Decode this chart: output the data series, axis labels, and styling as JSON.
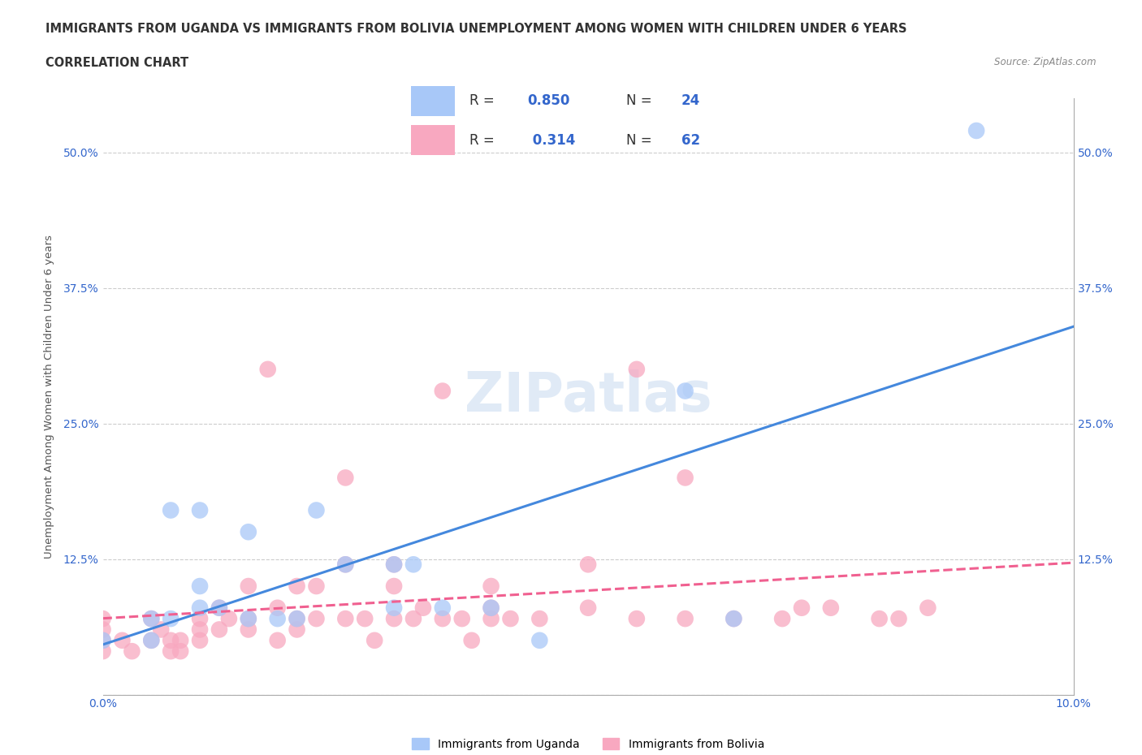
{
  "title_line1": "IMMIGRANTS FROM UGANDA VS IMMIGRANTS FROM BOLIVIA UNEMPLOYMENT AMONG WOMEN WITH CHILDREN UNDER 6 YEARS",
  "title_line2": "CORRELATION CHART",
  "source": "Source: ZipAtlas.com",
  "xlabel": "",
  "ylabel": "Unemployment Among Women with Children Under 6 years",
  "xlim": [
    0.0,
    0.1
  ],
  "ylim": [
    0.0,
    0.55
  ],
  "x_ticks": [
    0.0,
    0.02,
    0.04,
    0.06,
    0.08,
    0.1
  ],
  "x_tick_labels": [
    "0.0%",
    "",
    "",
    "",
    "",
    "10.0%"
  ],
  "y_ticks": [
    0.0,
    0.125,
    0.25,
    0.375,
    0.5
  ],
  "y_tick_labels": [
    "",
    "12.5%",
    "25.0%",
    "37.5%",
    "50.0%"
  ],
  "background_color": "#ffffff",
  "grid_color": "#cccccc",
  "watermark": "ZIPatlas",
  "legend_R1": "R = 0.850",
  "legend_N1": "N = 24",
  "legend_R2": "R =  0.314",
  "legend_N2": "N = 62",
  "color_uganda": "#a8c8f8",
  "color_bolivia": "#f8a8c0",
  "color_uganda_line": "#4488dd",
  "color_bolivia_line": "#f06090",
  "label_uganda": "Immigrants from Uganda",
  "label_bolivia": "Immigrants from Bolivia",
  "uganda_x": [
    0.0,
    0.005,
    0.005,
    0.007,
    0.007,
    0.01,
    0.01,
    0.01,
    0.012,
    0.015,
    0.015,
    0.018,
    0.02,
    0.022,
    0.025,
    0.03,
    0.03,
    0.032,
    0.035,
    0.04,
    0.045,
    0.06,
    0.065,
    0.09
  ],
  "uganda_y": [
    0.05,
    0.05,
    0.07,
    0.07,
    0.17,
    0.17,
    0.1,
    0.08,
    0.08,
    0.07,
    0.15,
    0.07,
    0.07,
    0.17,
    0.12,
    0.12,
    0.08,
    0.12,
    0.08,
    0.08,
    0.05,
    0.28,
    0.07,
    0.52
  ],
  "bolivia_x": [
    0.0,
    0.0,
    0.0,
    0.0,
    0.002,
    0.003,
    0.005,
    0.005,
    0.006,
    0.007,
    0.007,
    0.008,
    0.008,
    0.01,
    0.01,
    0.01,
    0.012,
    0.012,
    0.013,
    0.015,
    0.015,
    0.015,
    0.017,
    0.018,
    0.018,
    0.02,
    0.02,
    0.02,
    0.022,
    0.022,
    0.025,
    0.025,
    0.025,
    0.027,
    0.028,
    0.03,
    0.03,
    0.03,
    0.032,
    0.033,
    0.035,
    0.035,
    0.037,
    0.038,
    0.04,
    0.04,
    0.04,
    0.042,
    0.045,
    0.05,
    0.05,
    0.055,
    0.055,
    0.06,
    0.06,
    0.065,
    0.07,
    0.072,
    0.075,
    0.08,
    0.082,
    0.085
  ],
  "bolivia_y": [
    0.05,
    0.07,
    0.06,
    0.04,
    0.05,
    0.04,
    0.05,
    0.07,
    0.06,
    0.04,
    0.05,
    0.05,
    0.04,
    0.05,
    0.06,
    0.07,
    0.06,
    0.08,
    0.07,
    0.07,
    0.06,
    0.1,
    0.3,
    0.05,
    0.08,
    0.06,
    0.07,
    0.1,
    0.07,
    0.1,
    0.07,
    0.12,
    0.2,
    0.07,
    0.05,
    0.07,
    0.1,
    0.12,
    0.07,
    0.08,
    0.07,
    0.28,
    0.07,
    0.05,
    0.07,
    0.08,
    0.1,
    0.07,
    0.07,
    0.08,
    0.12,
    0.07,
    0.3,
    0.07,
    0.2,
    0.07,
    0.07,
    0.08,
    0.08,
    0.07,
    0.07,
    0.08
  ]
}
